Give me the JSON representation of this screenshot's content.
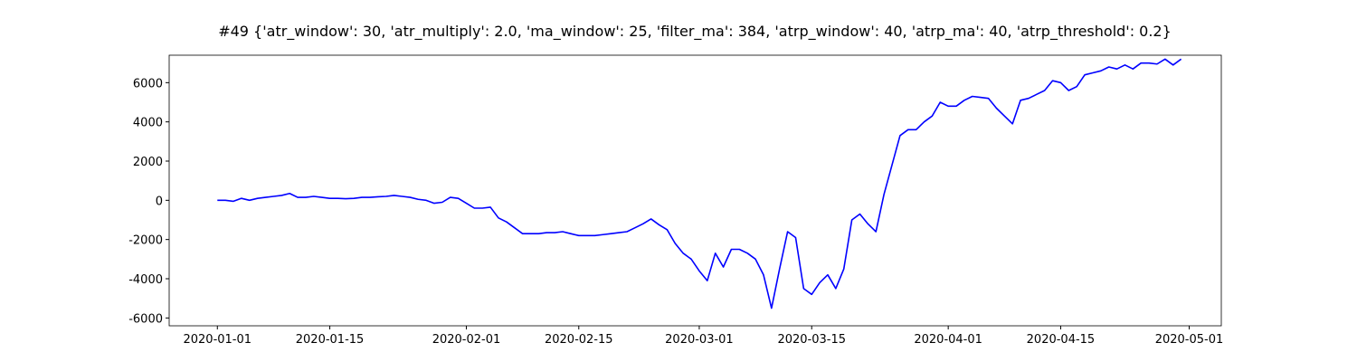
{
  "chart_data": {
    "type": "line",
    "title": "#49 {'atr_window': 30, 'atr_multiply': 2.0, 'ma_window': 25, 'filter_ma': 384, 'atrp_window': 40, 'atrp_ma': 40, 'atrp_threshold': 0.2}",
    "color": "#0000ff",
    "x": [
      "2020-01-01",
      "2020-01-02",
      "2020-01-03",
      "2020-01-04",
      "2020-01-05",
      "2020-01-06",
      "2020-01-07",
      "2020-01-08",
      "2020-01-09",
      "2020-01-10",
      "2020-01-11",
      "2020-01-12",
      "2020-01-13",
      "2020-01-14",
      "2020-01-15",
      "2020-01-16",
      "2020-01-17",
      "2020-01-18",
      "2020-01-19",
      "2020-01-20",
      "2020-01-21",
      "2020-01-22",
      "2020-01-23",
      "2020-01-24",
      "2020-01-25",
      "2020-01-26",
      "2020-01-27",
      "2020-01-28",
      "2020-01-29",
      "2020-01-30",
      "2020-01-31",
      "2020-02-01",
      "2020-02-02",
      "2020-02-03",
      "2020-02-04",
      "2020-02-05",
      "2020-02-06",
      "2020-02-07",
      "2020-02-08",
      "2020-02-09",
      "2020-02-10",
      "2020-02-11",
      "2020-02-12",
      "2020-02-13",
      "2020-02-14",
      "2020-02-15",
      "2020-02-16",
      "2020-02-17",
      "2020-02-18",
      "2020-02-19",
      "2020-02-20",
      "2020-02-21",
      "2020-02-22",
      "2020-02-23",
      "2020-02-24",
      "2020-02-25",
      "2020-02-26",
      "2020-02-27",
      "2020-02-28",
      "2020-02-29",
      "2020-03-01",
      "2020-03-02",
      "2020-03-03",
      "2020-03-04",
      "2020-03-05",
      "2020-03-06",
      "2020-03-07",
      "2020-03-08",
      "2020-03-09",
      "2020-03-10",
      "2020-03-11",
      "2020-03-12",
      "2020-03-13",
      "2020-03-14",
      "2020-03-15",
      "2020-03-16",
      "2020-03-17",
      "2020-03-18",
      "2020-03-19",
      "2020-03-20",
      "2020-03-21",
      "2020-03-22",
      "2020-03-23",
      "2020-03-24",
      "2020-03-25",
      "2020-03-26",
      "2020-03-27",
      "2020-03-28",
      "2020-03-29",
      "2020-03-30",
      "2020-03-31",
      "2020-04-01",
      "2020-04-02",
      "2020-04-03",
      "2020-04-04",
      "2020-04-05",
      "2020-04-06",
      "2020-04-07",
      "2020-04-08",
      "2020-04-09",
      "2020-04-10",
      "2020-04-11",
      "2020-04-12",
      "2020-04-13",
      "2020-04-14",
      "2020-04-15",
      "2020-04-16",
      "2020-04-17",
      "2020-04-18",
      "2020-04-19",
      "2020-04-20",
      "2020-04-21",
      "2020-04-22",
      "2020-04-23",
      "2020-04-24",
      "2020-04-25",
      "2020-04-26",
      "2020-04-27",
      "2020-04-28",
      "2020-04-29",
      "2020-04-30"
    ],
    "values": [
      0,
      0,
      -50,
      100,
      0,
      100,
      150,
      200,
      250,
      350,
      150,
      150,
      200,
      150,
      100,
      100,
      80,
      100,
      150,
      150,
      180,
      200,
      250,
      200,
      150,
      50,
      0,
      -150,
      -100,
      150,
      100,
      -150,
      -400,
      -400,
      -350,
      -900,
      -1100,
      -1400,
      -1700,
      -1700,
      -1700,
      -1650,
      -1650,
      -1600,
      -1700,
      -1800,
      -1800,
      -1800,
      -1750,
      -1700,
      -1650,
      -1600,
      -1400,
      -1200,
      -950,
      -1250,
      -1500,
      -2200,
      -2700,
      -3000,
      -3600,
      -4100,
      -2700,
      -3400,
      -2500,
      -2500,
      -2700,
      -3000,
      -3800,
      -5500,
      -3500,
      -1600,
      -1900,
      -4500,
      -4800,
      -4200,
      -3800,
      -4500,
      -3500,
      -1000,
      -700,
      -1200,
      -1600,
      300,
      1800,
      3300,
      3600,
      3600,
      4000,
      4300,
      5000,
      4800,
      4800,
      5100,
      5300,
      5250,
      5200,
      4700,
      4300,
      3900,
      5100,
      5200,
      5400,
      5600,
      6100,
      6000,
      5600,
      5800,
      6400,
      6500,
      6600,
      6800,
      6700,
      6900,
      6700,
      7000,
      7000,
      6950,
      7200,
      6900,
      7200
    ],
    "xlim": [
      "2019-12-26",
      "2020-05-05"
    ],
    "xticks": [
      "2020-01-01",
      "2020-01-15",
      "2020-02-01",
      "2020-02-15",
      "2020-03-01",
      "2020-03-15",
      "2020-04-01",
      "2020-04-15",
      "2020-05-01"
    ],
    "ylim": [
      -6400,
      7400
    ],
    "yticks": [
      -6000,
      -4000,
      -2000,
      0,
      2000,
      4000,
      6000
    ],
    "grid": false
  }
}
